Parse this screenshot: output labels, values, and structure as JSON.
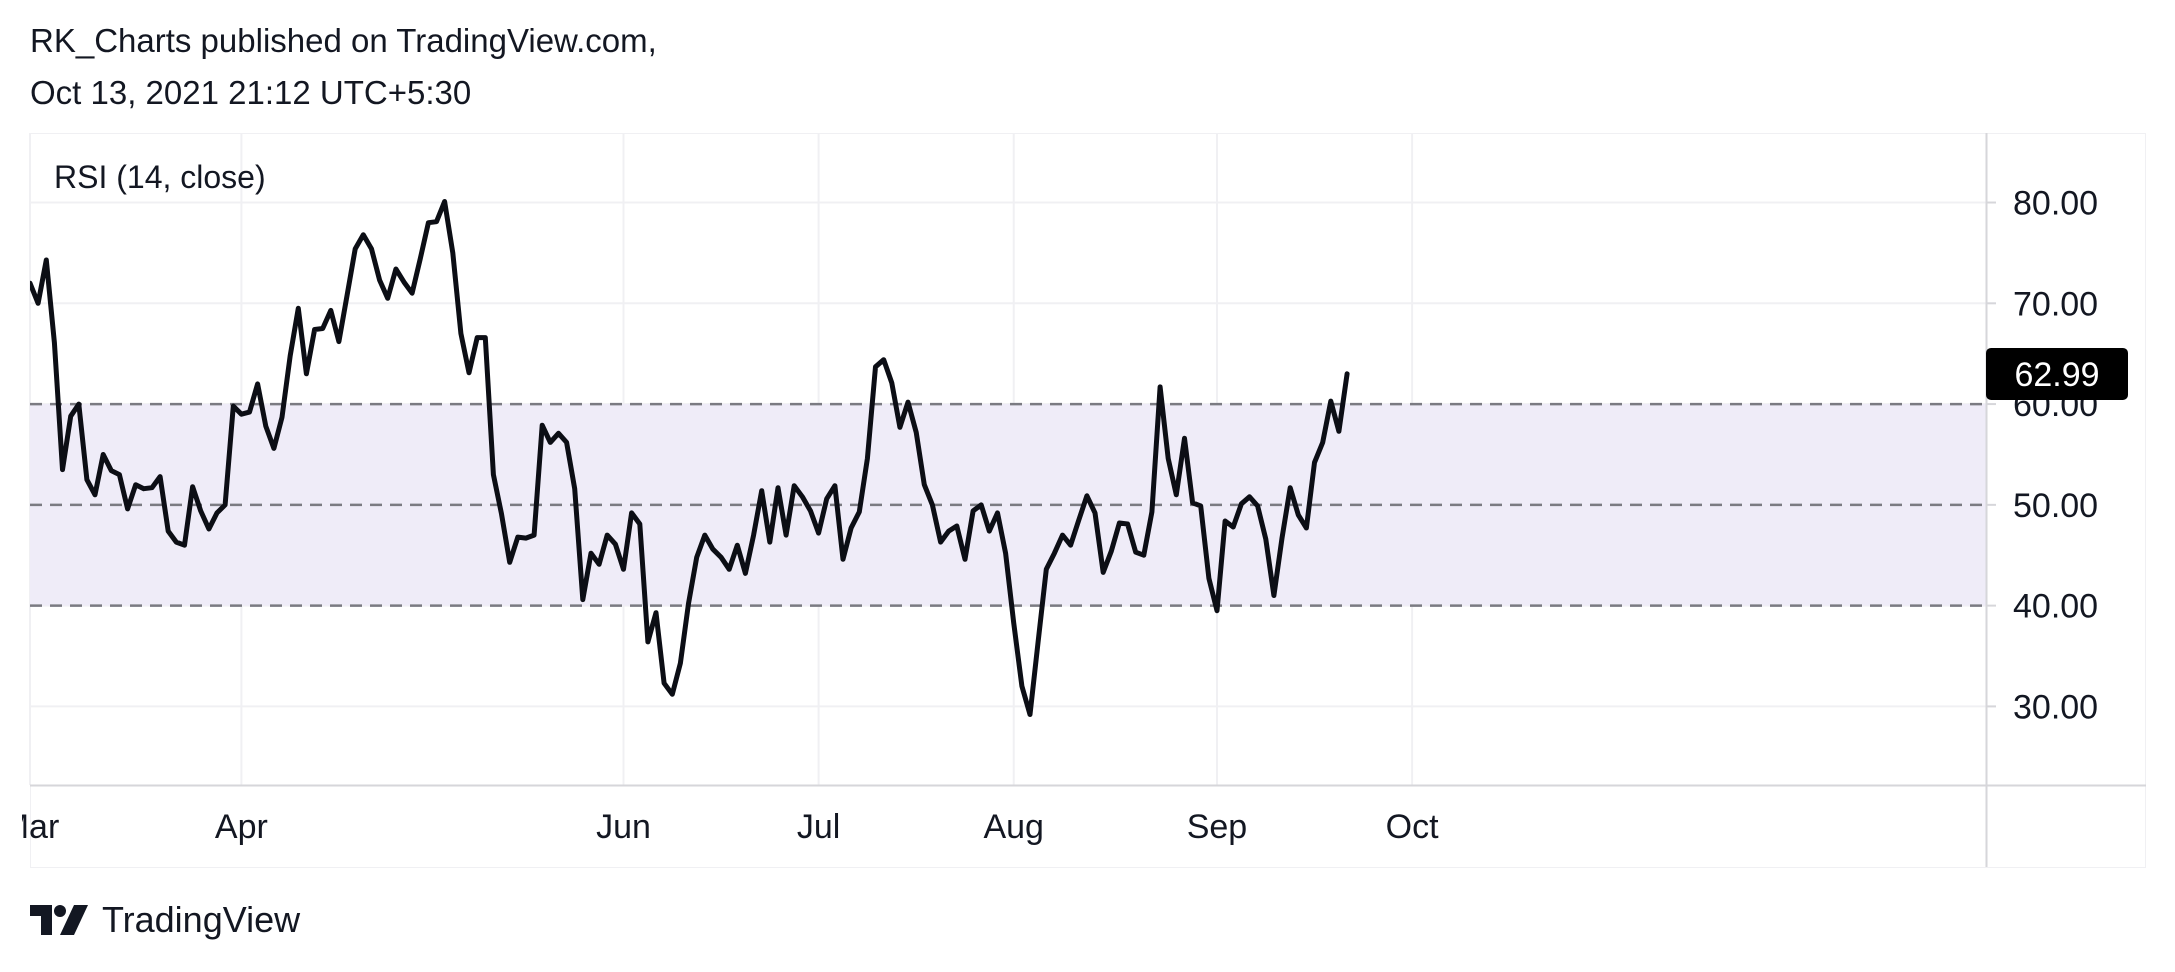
{
  "header": {
    "line1": "RK_Charts published on TradingView.com,",
    "line2": "Oct 13, 2021 21:12 UTC+5:30"
  },
  "footer": {
    "brand": "TradingView"
  },
  "colors": {
    "line": "#0c0e15",
    "band": "#efecf8",
    "grid": "#f0f0f3",
    "dash": "#7b7b82",
    "axis": "#d6d6da",
    "text": "#131722",
    "badge_bg": "#000000",
    "badge_text": "#ffffff"
  },
  "chart_data": {
    "type": "line",
    "title": "RSI (14, close)",
    "indicator": {
      "name": "RSI",
      "length": 14,
      "source": "close"
    },
    "ylim": [
      22.2,
      86.9
    ],
    "y_ticks": [
      {
        "value": 80,
        "label": "80.00"
      },
      {
        "value": 70,
        "label": "70.00"
      },
      {
        "value": 60,
        "label": "60.00"
      },
      {
        "value": 50,
        "label": "50.00"
      },
      {
        "value": 40,
        "label": "40.00"
      },
      {
        "value": 30,
        "label": "30.00"
      }
    ],
    "x_labels": [
      {
        "index": 0,
        "label": "Mar"
      },
      {
        "index": 26,
        "label": "Apr"
      },
      {
        "index": 73,
        "label": "Jun"
      },
      {
        "index": 97,
        "label": "Jul"
      },
      {
        "index": 121,
        "label": "Aug"
      },
      {
        "index": 146,
        "label": "Sep"
      },
      {
        "index": 170,
        "label": "Oct"
      }
    ],
    "x_range": [
      0,
      197
    ],
    "bands": {
      "upper": 60,
      "middle": 50,
      "lower": 40
    },
    "last_value": {
      "value": 62.99,
      "label": "62.99"
    },
    "values": [
      72,
      70,
      74.3,
      66.1,
      53.5,
      58.8,
      60,
      52.5,
      51,
      55,
      53.4,
      53,
      49.6,
      52,
      51.6,
      51.7,
      52.8,
      47.4,
      46.3,
      46,
      51.8,
      49.4,
      47.6,
      49.2,
      50,
      59.8,
      59,
      59.2,
      62,
      57.8,
      55.6,
      58.7,
      64.8,
      69.5,
      63,
      67.4,
      67.5,
      69.3,
      66.2,
      70.8,
      75.4,
      76.8,
      75.4,
      72.3,
      70.5,
      73.4,
      72.1,
      71,
      74.4,
      78,
      78.1,
      80.1,
      75,
      67,
      63.1,
      66.6,
      66.6,
      53,
      49.1,
      44.3,
      46.8,
      46.7,
      47,
      57.9,
      56.2,
      57.1,
      56.2,
      51.6,
      40.6,
      45.2,
      44.1,
      47,
      46.1,
      43.6,
      49.2,
      48.1,
      36.4,
      39.3,
      32.3,
      31.2,
      34.3,
      40.2,
      44.8,
      47,
      45.6,
      44.8,
      43.6,
      46,
      43.2,
      47,
      51.4,
      46.3,
      51.7,
      47,
      51.9,
      50.8,
      49.4,
      47.2,
      50.6,
      51.9,
      44.6,
      47.7,
      49.3,
      54.6,
      63.7,
      64.4,
      62.1,
      57.7,
      60.2,
      57.2,
      52,
      50,
      46.3,
      47.4,
      47.9,
      44.6,
      49.4,
      50,
      47.4,
      49.2,
      45.2,
      38.3,
      32,
      29.2,
      36.4,
      43.6,
      45.2,
      47,
      46,
      48.5,
      50.9,
      49.2,
      43.3,
      45.4,
      48.2,
      48.1,
      45.3,
      45,
      49.3,
      61.7,
      54.6,
      51,
      56.6,
      50.2,
      49.9,
      42.7,
      39.5,
      48.4,
      47.8,
      50.1,
      50.8,
      49.9,
      46.6,
      41,
      46.7,
      51.7,
      49,
      47.7,
      54.2,
      56.2,
      60.3,
      57.3,
      63
    ]
  }
}
